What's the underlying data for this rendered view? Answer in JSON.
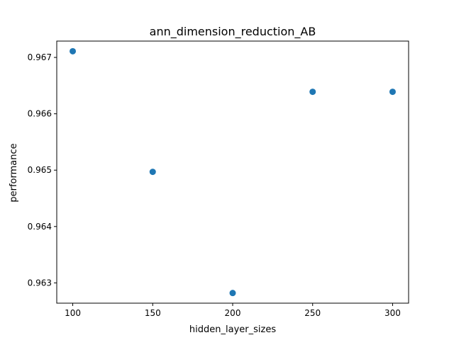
{
  "chart_data": {
    "type": "scatter",
    "title": "ann_dimension_reduction_AB",
    "xlabel": "hidden_layer_sizes",
    "ylabel": "performance",
    "x": [
      100,
      150,
      200,
      250,
      300
    ],
    "y": [
      0.96711,
      0.96497,
      0.96282,
      0.96639,
      0.96639
    ],
    "xlim": [
      90,
      310
    ],
    "ylim": [
      0.96264,
      0.96729
    ],
    "xticks": [
      100,
      150,
      200,
      250,
      300
    ],
    "xtick_labels": [
      "100",
      "150",
      "200",
      "250",
      "300"
    ],
    "yticks": [
      0.963,
      0.964,
      0.965,
      0.966,
      0.967
    ],
    "ytick_labels": [
      "0.963",
      "0.964",
      "0.965",
      "0.966",
      "0.967"
    ],
    "grid": false,
    "marker_color": "#1f77b4"
  }
}
